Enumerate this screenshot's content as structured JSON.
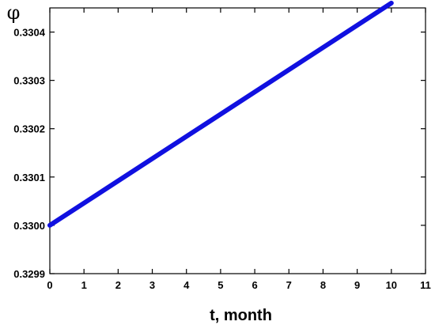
{
  "chart_data": {
    "type": "line",
    "xlabel": "t, month",
    "ylabel": "φ",
    "xlim": [
      0,
      11
    ],
    "ylim": [
      0.3299,
      0.33045
    ],
    "x_ticks": [
      0,
      1,
      2,
      3,
      4,
      5,
      6,
      7,
      8,
      9,
      10,
      11
    ],
    "y_ticks": [
      0.3299,
      0.33,
      0.3301,
      0.3302,
      0.3303,
      0.3304
    ],
    "y_tick_labels": [
      "0.3299",
      "0.3300",
      "0.3301",
      "0.3302",
      "0.3303",
      "0.3304"
    ],
    "grid": false,
    "series": [
      {
        "color": "#1010e0",
        "x": [
          0,
          10
        ],
        "y": [
          0.33,
          0.33046
        ]
      }
    ]
  }
}
